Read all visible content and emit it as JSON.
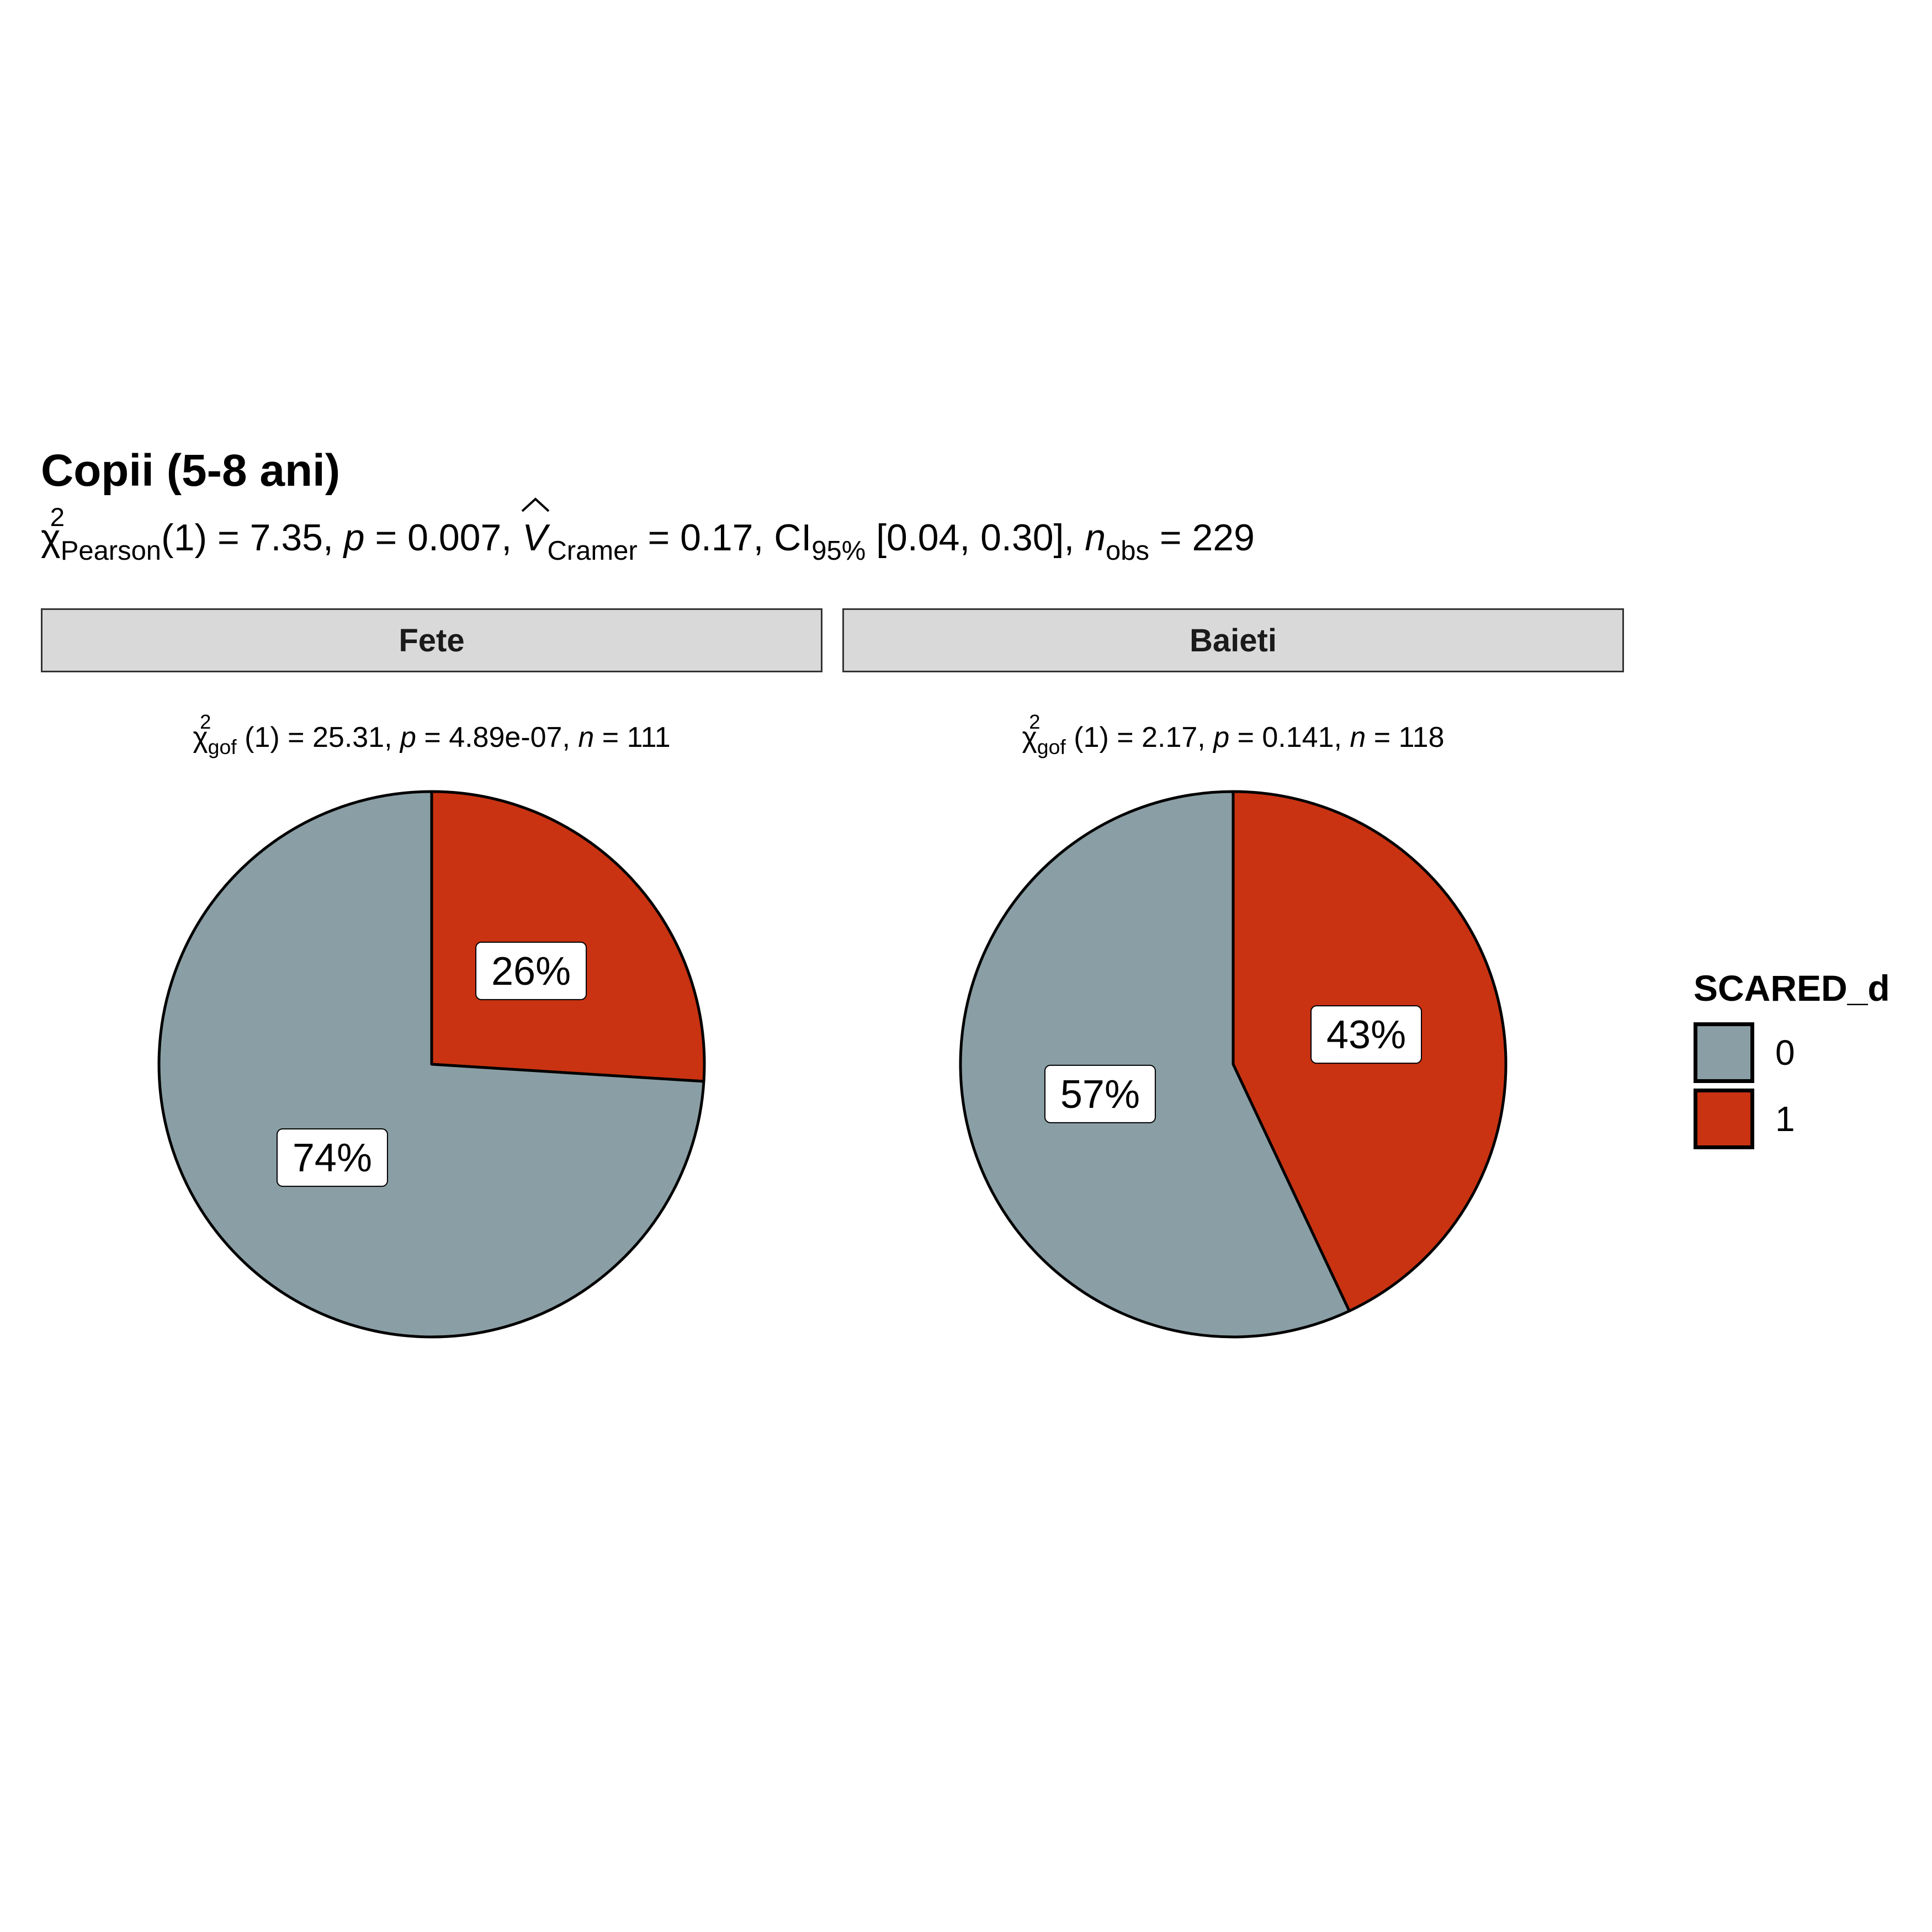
{
  "chart_data": {
    "type": "pie",
    "title": "Copii (5-8 ani)",
    "subtitle": {
      "chi_symbol": "χ",
      "chi_sup": "2",
      "chi_sub": "Pearson",
      "df": "(1) = 7.35, ",
      "p_label": "p",
      "p_value": " = 0.007, ",
      "v_label": "V",
      "v_sub": "Cramer",
      "v_value": " = 0.17, CI",
      "ci_sub": "95%",
      "ci_value": " [0.04, 0.30], ",
      "n_label": "n",
      "n_sub": "obs",
      "n_value": " = 229"
    },
    "legend": {
      "title": "SCARED_d",
      "position": "right",
      "entries": [
        {
          "label": "0",
          "color": "#8a9ea5"
        },
        {
          "label": "1",
          "color": "#c93312"
        }
      ]
    },
    "facets": [
      {
        "name": "Fete",
        "stat": {
          "chi": "χ",
          "sup": "2",
          "sub": "gof",
          "df": " (1) = 25.31,  ",
          "p_label": "p",
          "p_value": " = 4.89e-07,  ",
          "n_label": "n",
          "n_value": " = 111"
        },
        "slices": [
          {
            "category": "1",
            "value": 26,
            "label": "26%",
            "color": "#c93312"
          },
          {
            "category": "0",
            "value": 74,
            "label": "74%",
            "color": "#8a9ea5"
          }
        ]
      },
      {
        "name": "Baieti",
        "stat": {
          "chi": "χ",
          "sup": "2",
          "sub": "gof",
          "df": " (1) = 2.17,  ",
          "p_label": "p",
          "p_value": " = 0.141,  ",
          "n_label": "n",
          "n_value": " = 118"
        },
        "slices": [
          {
            "category": "1",
            "value": 43,
            "label": "43%",
            "color": "#c93312"
          },
          {
            "category": "0",
            "value": 57,
            "label": "57%",
            "color": "#8a9ea5"
          }
        ]
      }
    ]
  }
}
